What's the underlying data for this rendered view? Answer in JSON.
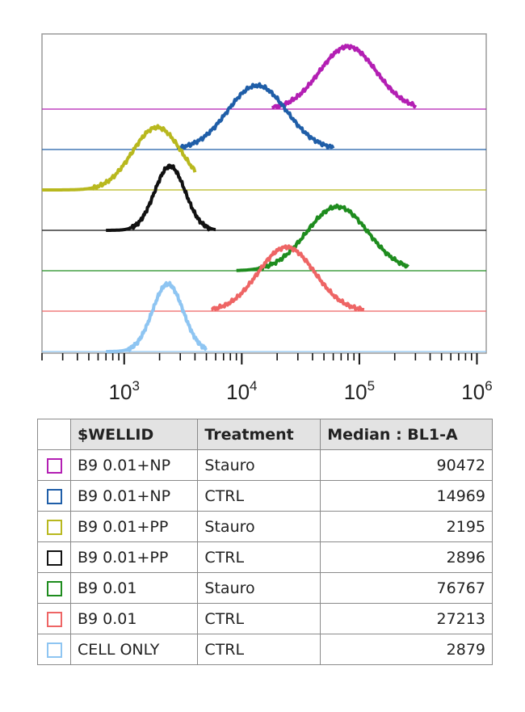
{
  "chart_data": {
    "type": "area",
    "x_scale": "log",
    "xlim": [
      200,
      1200000
    ],
    "x_ticks": [
      {
        "base": "10",
        "exp": "3"
      },
      {
        "base": "10",
        "exp": "4"
      },
      {
        "base": "10",
        "exp": "5"
      },
      {
        "base": "10",
        "exp": "6"
      }
    ],
    "layout": "offset-overlay",
    "series": [
      {
        "name": "B9 0.01+NP",
        "treatment": "Stauro",
        "median": 90472,
        "color": "#b31fb3",
        "peak_x": 80000,
        "sigma": 0.24,
        "min_x": 18000,
        "max_x": 300000,
        "height": 0.88
      },
      {
        "name": "B9 0.01+NP",
        "treatment": "CTRL",
        "median": 14969,
        "color": "#1f5ea8",
        "peak_x": 13500,
        "sigma": 0.25,
        "min_x": 2800,
        "max_x": 60000,
        "height": 0.9
      },
      {
        "name": "B9 0.01+PP",
        "treatment": "Stauro",
        "median": 2195,
        "color": "#b8b81e",
        "peak_x": 1900,
        "sigma": 0.21,
        "min_x": 200,
        "max_x": 4000,
        "height": 0.88
      },
      {
        "name": "B9 0.01+PP",
        "treatment": "CTRL",
        "median": 2896,
        "color": "#111111",
        "peak_x": 2450,
        "sigma": 0.13,
        "min_x": 700,
        "max_x": 6000,
        "height": 0.9
      },
      {
        "name": "B9 0.01",
        "treatment": "Stauro",
        "median": 76767,
        "color": "#1e8c1e",
        "peak_x": 65000,
        "sigma": 0.26,
        "min_x": 9000,
        "max_x": 260000,
        "height": 0.9
      },
      {
        "name": "B9 0.01",
        "treatment": "CTRL",
        "median": 27213,
        "color": "#ee6565",
        "peak_x": 24000,
        "sigma": 0.24,
        "min_x": 5500,
        "max_x": 110000,
        "height": 0.9
      },
      {
        "name": "CELL ONLY",
        "treatment": "CTRL",
        "median": 2879,
        "color": "#8ec5f2",
        "peak_x": 2350,
        "sigma": 0.13,
        "min_x": 700,
        "max_x": 5000,
        "height": 0.95
      }
    ]
  },
  "table": {
    "headers": [
      "$WELLID",
      "Treatment",
      "Median : BL1-A"
    ]
  }
}
